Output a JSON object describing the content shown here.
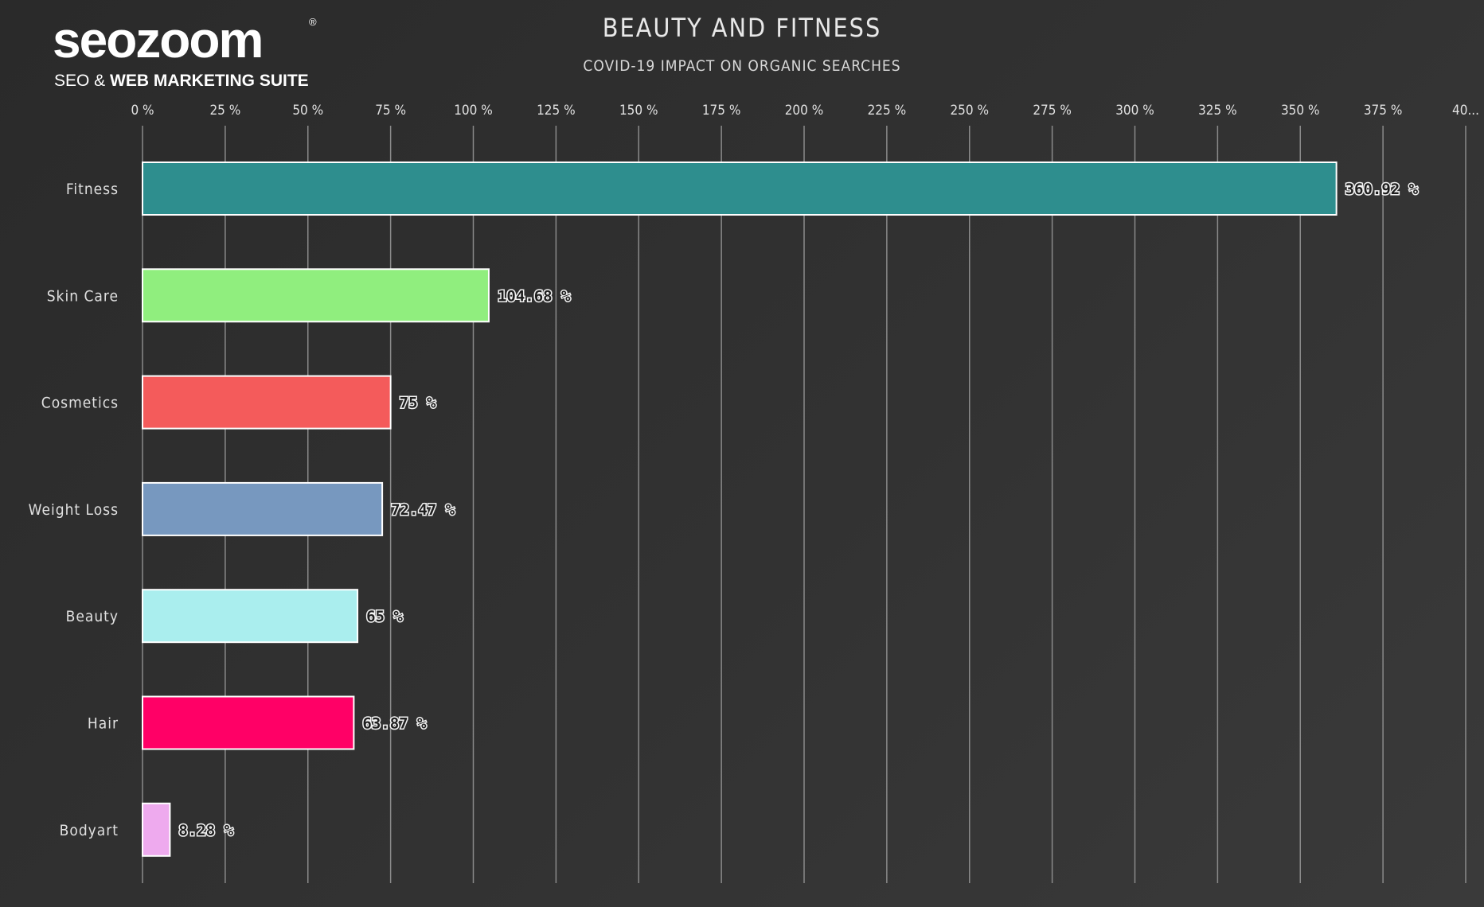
{
  "logo": {
    "wordmark": "seozoom",
    "registered": "®",
    "tagline_light": "SEO & ",
    "tagline_bold": "WEB MARKETING SUITE"
  },
  "chart_data": {
    "type": "bar",
    "orientation": "horizontal",
    "title": "BEAUTY AND FITNESS",
    "subtitle": "COVID-19 IMPACT ON ORGANIC SEARCHES",
    "xlabel": "",
    "ylabel": "",
    "xlim": [
      0,
      400
    ],
    "x_ticks": [
      "0 %",
      "25 %",
      "50 %",
      "75 %",
      "100 %",
      "125 %",
      "150 %",
      "175 %",
      "200 %",
      "225 %",
      "250 %",
      "275 %",
      "300 %",
      "325 %",
      "350 %",
      "375 %",
      "40..."
    ],
    "x_tick_values": [
      0,
      25,
      50,
      75,
      100,
      125,
      150,
      175,
      200,
      225,
      250,
      275,
      300,
      325,
      350,
      375,
      400
    ],
    "grid": true,
    "categories": [
      "Fitness",
      "Skin Care",
      "Cosmetics",
      "Weight Loss",
      "Beauty",
      "Hair",
      "Bodyart"
    ],
    "values": [
      360.92,
      104.68,
      75,
      72.47,
      65,
      63.87,
      8.28
    ],
    "value_labels": [
      "360.92 %",
      "104.68 %",
      "75 %",
      "72.47 %",
      "65 %",
      "63.87 %",
      "8.28 %"
    ],
    "colors": [
      "#2e8e8e",
      "#90ee7e",
      "#f45b5b",
      "#7798bf",
      "#aaeeee",
      "#ff0066",
      "#eeaaee"
    ]
  }
}
